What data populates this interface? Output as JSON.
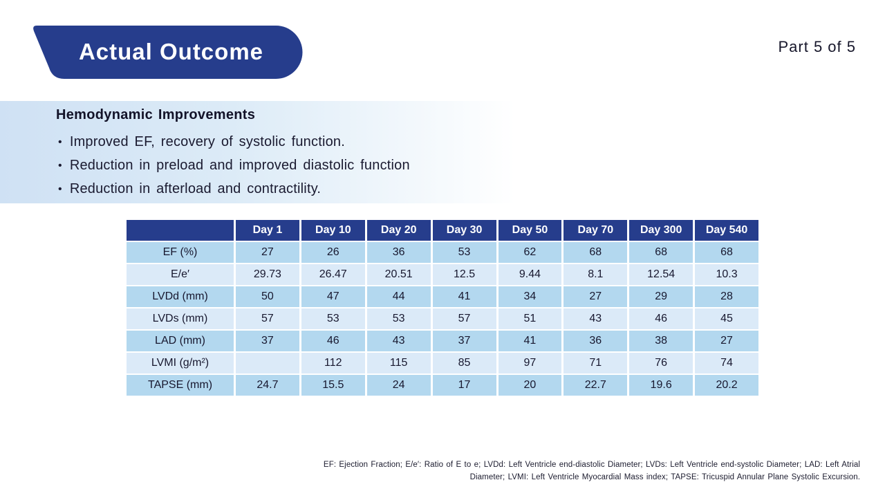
{
  "slide": {
    "title": "Actual Outcome",
    "part_label": "Part 5 of 5"
  },
  "colors": {
    "navy": "#263d8c",
    "row_dark": "#b3d8ef",
    "row_light": "#dbeaf8",
    "strip_start": "#cfe1f4"
  },
  "section": {
    "heading": "Hemodynamic Improvements",
    "bullet_char": "•",
    "bullets": [
      "Improved EF, recovery of systolic function.",
      "Reduction in preload and improved diastolic function",
      "Reduction in afterload and contractility."
    ]
  },
  "table": {
    "columns": [
      "Day 1",
      "Day 10",
      "Day 20",
      "Day 30",
      "Day 50",
      "Day 70",
      "Day 300",
      "Day 540"
    ],
    "rows": [
      {
        "label": "EF (%)",
        "values": [
          "27",
          "26",
          "36",
          "53",
          "62",
          "68",
          "68",
          "68"
        ]
      },
      {
        "label": "E/e′",
        "values": [
          "29.73",
          "26.47",
          "20.51",
          "12.5",
          "9.44",
          "8.1",
          "12.54",
          "10.3"
        ]
      },
      {
        "label": "LVDd (mm)",
        "values": [
          "50",
          "47",
          "44",
          "41",
          "34",
          "27",
          "29",
          "28"
        ]
      },
      {
        "label": "LVDs (mm)",
        "values": [
          "57",
          "53",
          "53",
          "57",
          "51",
          "43",
          "46",
          "45"
        ]
      },
      {
        "label": "LAD (mm)",
        "values": [
          "37",
          "46",
          "43",
          "37",
          "41",
          "36",
          "38",
          "27"
        ]
      },
      {
        "label": "LVMI (g/m²)",
        "values": [
          "",
          "112",
          "115",
          "85",
          "97",
          "71",
          "76",
          "74"
        ]
      },
      {
        "label": "TAPSE (mm)",
        "values": [
          "24.7",
          "15.5",
          "24",
          "17",
          "20",
          "22.7",
          "19.6",
          "20.2"
        ]
      }
    ]
  },
  "footnote": {
    "line1": "EF: Ejection Fraction; E/e′: Ratio of E to e; LVDd: Left Ventricle end-diastolic Diameter; LVDs: Left Ventricle end-systolic Diameter; LAD: Left Atrial",
    "line2": "Diameter; LVMI: Left Ventricle Myocardial Mass index; TAPSE: Tricuspid Annular Plane Systolic Excursion."
  }
}
